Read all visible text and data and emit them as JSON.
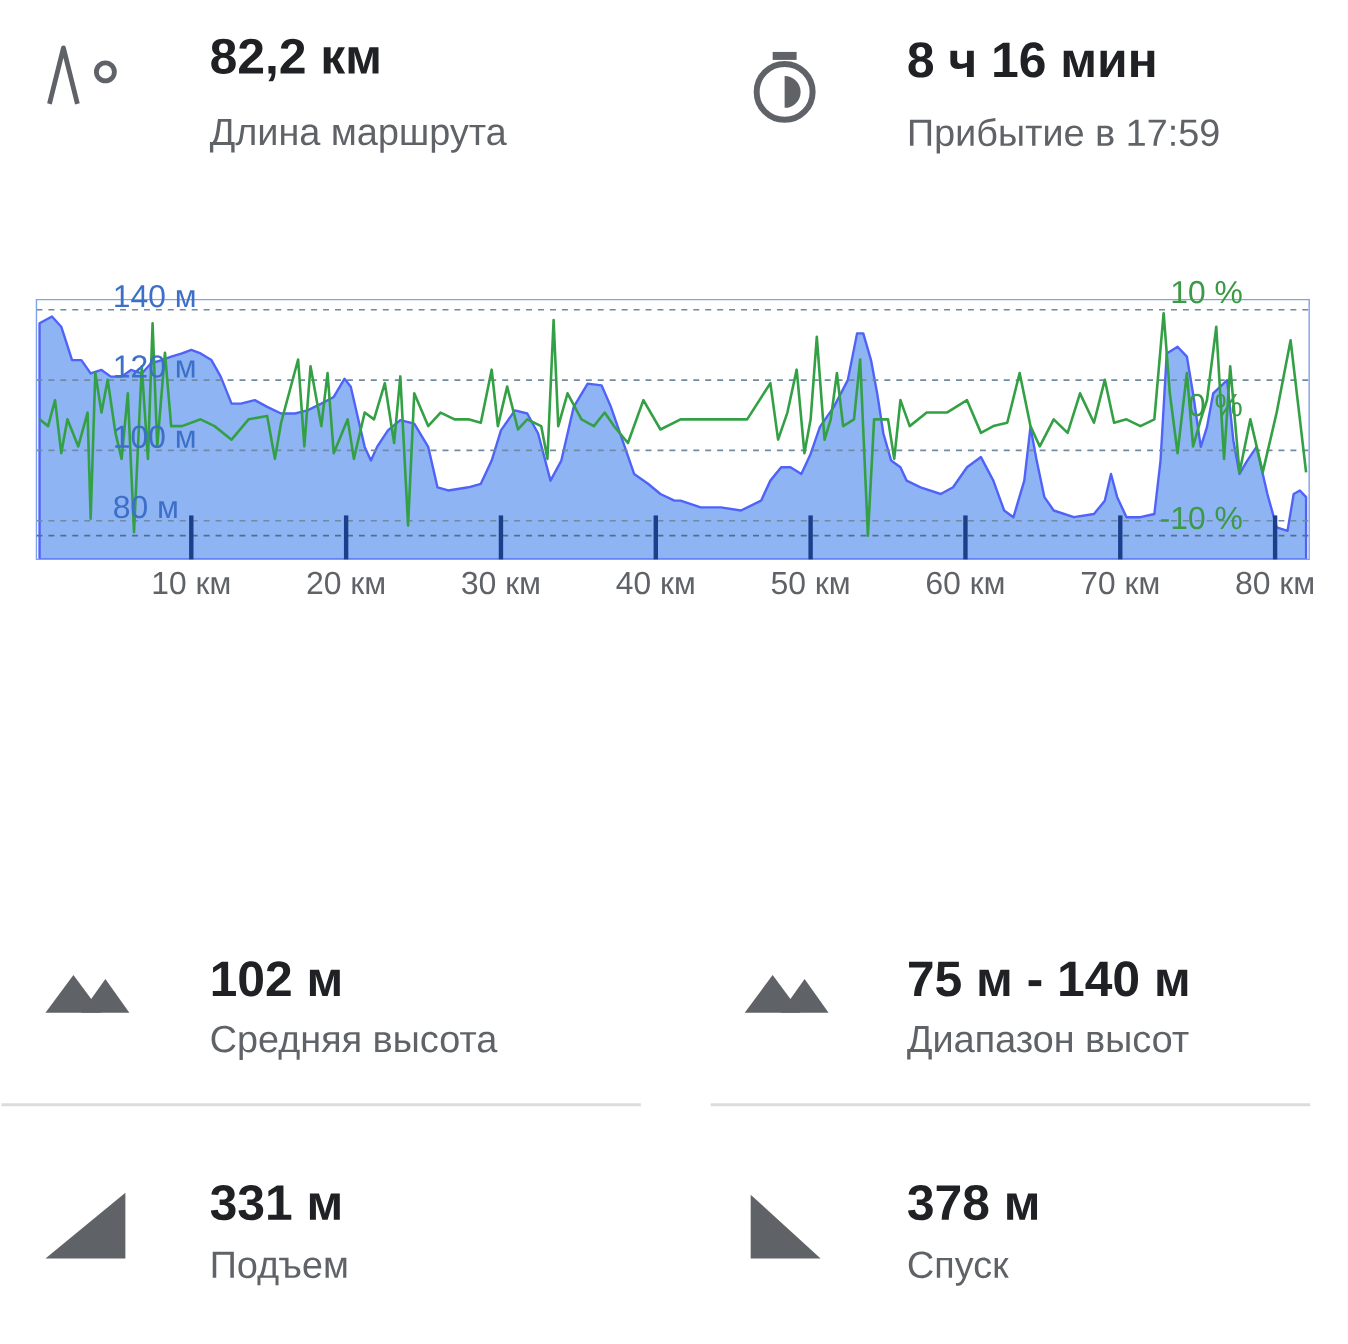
{
  "chart_data": [
    {
      "type": "area",
      "xlim": [
        0,
        82.2
      ],
      "ylim": [
        69.0,
        142.9
      ],
      "y2lim": [
        -12.1,
        10.9
      ],
      "xticks": [
        {
          "value": 10,
          "label": "10 км"
        },
        {
          "value": 20,
          "label": "20 км"
        },
        {
          "value": 30,
          "label": "30 км"
        },
        {
          "value": 40,
          "label": "40 км"
        },
        {
          "value": 50,
          "label": "50 км"
        },
        {
          "value": 60,
          "label": "60 км"
        },
        {
          "value": 70,
          "label": "70 км"
        },
        {
          "value": 80,
          "label": "80 км"
        }
      ],
      "yticks": [
        {
          "value": 80,
          "label": "80 м"
        },
        {
          "value": 100,
          "label": "100 м"
        },
        {
          "value": 120,
          "label": "120 м"
        },
        {
          "value": 140,
          "label": "140 м"
        }
      ],
      "y2ticks": [
        {
          "value": -10,
          "label": "-10 %"
        },
        {
          "value": 0,
          "label": "0 %"
        },
        {
          "value": 10,
          "label": "10 %"
        }
      ],
      "grid": "y",
      "ref_lines": [
        {
          "axis": "y2",
          "value": -10,
          "line_style": "dashed",
          "color": "#4f6f8f"
        }
      ],
      "series": [
        {
          "type": "area",
          "color": "#8fb4f4",
          "x": [
            0.2,
            1.0,
            1.6,
            2.3,
            2.9,
            3.5,
            4.2,
            4.8,
            5.5,
            6.1,
            6.8,
            7.4,
            8.1,
            8.7,
            9.4,
            10.0,
            10.6,
            11.3,
            11.9,
            12.6,
            13.2,
            14.1,
            14.9,
            15.8,
            16.7,
            17.5,
            18.4,
            19.2,
            19.9,
            20.3,
            20.75,
            21.2,
            21.6,
            22.0,
            22.7,
            23.5,
            24.4,
            25.3,
            25.9,
            26.6,
            27.9,
            28.7,
            29.4,
            30.0,
            30.9,
            31.7,
            32.4,
            33.2,
            33.9,
            34.7,
            35.6,
            36.5,
            37.1,
            37.7,
            38.6,
            39.5,
            40.3,
            41.2,
            41.6,
            42.9,
            44.2,
            45.5,
            46.8,
            47.4,
            48.1,
            48.7,
            49.4,
            50.0,
            50.6,
            51.5,
            52.4,
            53.0,
            53.4,
            53.9,
            54.3,
            54.7,
            55.2,
            55.8,
            56.2,
            57.1,
            58.4,
            59.2,
            60.1,
            61.0,
            61.8,
            62.5,
            63.1,
            63.8,
            64.2,
            64.6,
            65.1,
            65.7,
            67.0,
            68.3,
            69.0,
            69.4,
            69.8,
            70.4,
            71.3,
            72.2,
            72.6,
            73.0,
            73.7,
            74.3,
            74.7,
            75.2,
            75.6,
            76.0,
            76.9,
            77.3,
            77.7,
            78.2,
            78.8,
            79.5,
            80.1,
            80.8,
            81.2,
            81.6,
            82.0
          ],
          "values": [
            136.2,
            138.1,
            135.2,
            125.7,
            125.7,
            121.9,
            122.9,
            121.0,
            121.0,
            122.9,
            121.9,
            124.8,
            125.7,
            126.7,
            127.6,
            128.6,
            127.6,
            125.7,
            121.0,
            113.3,
            113.3,
            114.3,
            112.4,
            110.5,
            110.5,
            111.4,
            113.3,
            115.2,
            120.4,
            118.1,
            109.5,
            101.0,
            97.1,
            101.0,
            105.7,
            108.6,
            107.6,
            101.0,
            89.5,
            88.6,
            89.5,
            90.5,
            97.1,
            105.7,
            111.4,
            110.5,
            104.8,
            91.4,
            97.1,
            112.4,
            119.0,
            118.5,
            112.4,
            104.8,
            93.3,
            90.5,
            87.6,
            85.7,
            85.7,
            83.8,
            83.8,
            82.9,
            85.7,
            91.4,
            95.2,
            95.2,
            93.3,
            99.0,
            106.7,
            112.4,
            120.0,
            133.3,
            133.3,
            125.7,
            116.2,
            104.8,
            97.1,
            95.2,
            91.4,
            89.5,
            87.6,
            89.5,
            95.2,
            98.1,
            91.4,
            82.9,
            81.0,
            91.4,
            106.7,
            97.1,
            86.7,
            82.9,
            81.0,
            81.9,
            85.7,
            93.3,
            86.7,
            81.0,
            81.0,
            81.9,
            97.1,
            127.6,
            129.5,
            126.7,
            116.2,
            101.0,
            106.7,
            116.2,
            120.0,
            102.9,
            93.3,
            97.1,
            101.0,
            87.6,
            78.1,
            77.1,
            87.6,
            88.6,
            86.7
          ]
        },
        {
          "type": "line",
          "axis": "y2",
          "color": "#34a045",
          "x": [
            0.2,
            0.75,
            1.2,
            1.6,
            2.0,
            2.7,
            3.3,
            3.5,
            3.8,
            4.2,
            4.6,
            5.1,
            5.5,
            5.9,
            6.3,
            6.8,
            7.2,
            7.5,
            7.8,
            8.3,
            8.7,
            9.4,
            10.6,
            11.5,
            12.6,
            13.7,
            14.9,
            15.4,
            15.8,
            16.9,
            17.3,
            17.7,
            18.4,
            18.8,
            19.2,
            20.1,
            20.5,
            21.2,
            21.8,
            22.5,
            23.1,
            23.5,
            24.0,
            24.4,
            25.3,
            26.1,
            27.0,
            27.9,
            28.7,
            29.4,
            29.8,
            30.4,
            31.1,
            31.7,
            32.6,
            33.0,
            33.4,
            33.7,
            34.3,
            35.2,
            36.0,
            36.7,
            37.3,
            38.2,
            39.2,
            40.3,
            41.6,
            42.9,
            44.6,
            45.9,
            47.4,
            47.9,
            48.5,
            49.1,
            49.6,
            50.0,
            50.4,
            50.9,
            51.3,
            51.7,
            52.1,
            52.8,
            53.2,
            53.7,
            54.1,
            55.0,
            55.4,
            55.8,
            56.4,
            57.5,
            58.8,
            60.1,
            61.0,
            61.8,
            62.7,
            63.5,
            64.2,
            64.8,
            65.7,
            66.6,
            67.4,
            68.3,
            69.0,
            69.6,
            70.4,
            71.3,
            72.2,
            72.8,
            73.2,
            73.7,
            74.3,
            74.7,
            75.2,
            75.6,
            76.2,
            76.7,
            77.1,
            77.7,
            78.4,
            79.2,
            80.1,
            81.0,
            81.6,
            82.0
          ],
          "values": [
            0.3,
            -0.3,
            2.0,
            -2.7,
            0.3,
            -2.1,
            0.9,
            -8.5,
            4.4,
            0.9,
            3.8,
            -0.9,
            -3.2,
            2.6,
            -9.7,
            5.0,
            -3.2,
            8.8,
            -2.1,
            6.2,
            -0.3,
            -0.3,
            0.3,
            -0.3,
            -1.5,
            0.3,
            0.6,
            -3.2,
            0.0,
            5.6,
            -2.1,
            5.0,
            -0.3,
            4.4,
            -2.7,
            0.3,
            -3.2,
            0.9,
            0.3,
            3.5,
            -1.8,
            4.1,
            -9.1,
            2.6,
            -0.3,
            0.9,
            0.3,
            0.3,
            0.0,
            4.7,
            -0.3,
            3.2,
            -0.6,
            0.3,
            -0.3,
            -3.2,
            9.1,
            -0.3,
            2.6,
            0.3,
            -0.3,
            0.9,
            -0.3,
            -1.8,
            2.0,
            -0.6,
            0.3,
            0.3,
            0.3,
            0.3,
            3.5,
            -1.5,
            0.9,
            4.7,
            -2.7,
            0.3,
            7.6,
            -1.5,
            0.3,
            4.4,
            -0.3,
            0.3,
            5.6,
            -10.0,
            0.3,
            0.3,
            -3.2,
            2.0,
            -0.3,
            0.9,
            0.9,
            2.0,
            -0.9,
            -0.3,
            0.0,
            4.4,
            -0.3,
            -2.1,
            0.3,
            -0.9,
            2.6,
            0.0,
            3.8,
            0.0,
            0.3,
            -0.3,
            0.3,
            9.7,
            2.6,
            -2.7,
            4.4,
            -2.1,
            0.3,
            2.0,
            8.5,
            -3.2,
            5.0,
            -4.4,
            0.3,
            -4.4,
            0.9,
            7.3,
            0.3,
            -4.4
          ]
        }
      ]
    },
    {
      "type": "other",
      "annotations": [
        "82,2 км",
        "Длина маршрута",
        "8 ч 16 мин",
        "Прибытие в 17:59",
        "102 м",
        "Средняя высота",
        "75 м - 140 м",
        "Диапазон высот",
        "331 м",
        "Подъем",
        "378 м",
        "Спуск"
      ]
    }
  ]
}
